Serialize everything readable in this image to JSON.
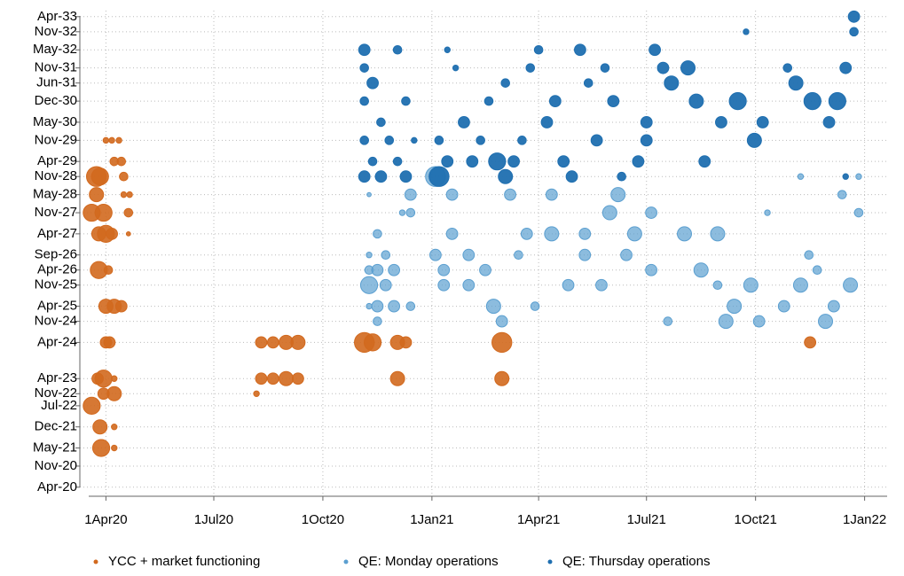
{
  "chart_data": {
    "type": "bubble",
    "xlim": [
      "2020-03-10",
      "2022-01-20"
    ],
    "xticks": [
      {
        "value": "2020-04-01",
        "label": "1Apr20"
      },
      {
        "value": "2020-07-01",
        "label": "1Jul20"
      },
      {
        "value": "2020-10-01",
        "label": "1Oct20"
      },
      {
        "value": "2021-01-01",
        "label": "1Jan21"
      },
      {
        "value": "2021-04-01",
        "label": "1Apr21"
      },
      {
        "value": "2021-07-01",
        "label": "1Jul21"
      },
      {
        "value": "2021-10-01",
        "label": "1Oct21"
      },
      {
        "value": "2022-01-01",
        "label": "1Jan22"
      }
    ],
    "ylim": [
      "2020-01",
      "2033-06"
    ],
    "yticks": [
      {
        "value": "2020-04",
        "label": "Apr-20"
      },
      {
        "value": "2020-11",
        "label": "Nov-20"
      },
      {
        "value": "2021-05",
        "label": "May-21"
      },
      {
        "value": "2021-12",
        "label": "Dec-21"
      },
      {
        "value": "2022-07",
        "label": "Jul-22"
      },
      {
        "value": "2022-11",
        "label": "Nov-22"
      },
      {
        "value": "2023-04",
        "label": "Apr-23"
      },
      {
        "value": "2024-04",
        "label": "Apr-24"
      },
      {
        "value": "2024-11",
        "label": "Nov-24"
      },
      {
        "value": "2025-04",
        "label": "Apr-25"
      },
      {
        "value": "2025-11",
        "label": "Nov-25"
      },
      {
        "value": "2026-04",
        "label": "Apr-26"
      },
      {
        "value": "2026-09",
        "label": "Sep-26"
      },
      {
        "value": "2027-04",
        "label": "Apr-27"
      },
      {
        "value": "2027-11",
        "label": "Nov-27"
      },
      {
        "value": "2028-05",
        "label": "May-28"
      },
      {
        "value": "2028-11",
        "label": "Nov-28"
      },
      {
        "value": "2029-04",
        "label": "Apr-29"
      },
      {
        "value": "2029-11",
        "label": "Nov-29"
      },
      {
        "value": "2030-05",
        "label": "May-30"
      },
      {
        "value": "2030-12",
        "label": "Dec-30"
      },
      {
        "value": "2031-06",
        "label": "Jun-31"
      },
      {
        "value": "2031-11",
        "label": "Nov-31"
      },
      {
        "value": "2032-05",
        "label": "May-32"
      },
      {
        "value": "2032-11",
        "label": "Nov-32"
      },
      {
        "value": "2033-04",
        "label": "Apr-33"
      }
    ],
    "grid": true,
    "legend": "bottom",
    "series": [
      {
        "name": "YCC + market functioning",
        "color": "#d2691e",
        "opacity": 0.9,
        "x": [
          "2020-03-24",
          "2020-03-27",
          "2020-03-24",
          "2020-03-20",
          "2020-03-30",
          "2020-03-26",
          "2020-04-01",
          "2020-04-06",
          "2020-03-26",
          "2020-04-03",
          "2020-04-01",
          "2020-04-08",
          "2020-04-14",
          "2020-04-01",
          "2020-04-04",
          "2020-03-25",
          "2020-03-30",
          "2020-04-08",
          "2020-03-30",
          "2020-04-08",
          "2020-03-20",
          "2020-03-27",
          "2020-04-08",
          "2020-03-28",
          "2020-04-08",
          "2020-04-01",
          "2020-04-06",
          "2020-04-12",
          "2020-04-08",
          "2020-04-14",
          "2020-04-16",
          "2020-04-16",
          "2020-04-21",
          "2020-04-20",
          "2020-04-20",
          "2020-08-10",
          "2020-08-20",
          "2020-08-31",
          "2020-09-10",
          "2020-08-10",
          "2020-08-20",
          "2020-08-31",
          "2020-09-10",
          "2020-08-06",
          "2020-11-05",
          "2020-11-12",
          "2020-12-03",
          "2020-12-10",
          "2020-12-03",
          "2021-03-01",
          "2021-03-01",
          "2021-11-16"
        ],
        "values": [
          "2028-11",
          "2028-11",
          "2028-05",
          "2027-11",
          "2027-11",
          "2027-04",
          "2027-04",
          "2027-04",
          "2026-04",
          "2026-04",
          "2025-04",
          "2025-04",
          "2025-04",
          "2024-04",
          "2024-04",
          "2023-04",
          "2023-04",
          "2023-04",
          "2022-11",
          "2022-11",
          "2022-07",
          "2021-12",
          "2021-12",
          "2021-05",
          "2021-05",
          "2029-11",
          "2029-11",
          "2029-11",
          "2029-04",
          "2029-04",
          "2028-11",
          "2028-05",
          "2028-05",
          "2027-11",
          "2027-04",
          "2024-04",
          "2024-04",
          "2024-04",
          "2024-04",
          "2023-04",
          "2023-04",
          "2023-04",
          "2023-04",
          "2022-11",
          "2024-04",
          "2024-04",
          "2024-04",
          "2024-04",
          "2023-04",
          "2024-04",
          "2023-04",
          "2024-04"
        ],
        "sizes": [
          7,
          6,
          5,
          6,
          6,
          5,
          6,
          4,
          6,
          3,
          5,
          5,
          4,
          4,
          4,
          4,
          6,
          2,
          4,
          5,
          6,
          5,
          2,
          6,
          2,
          2,
          2,
          2,
          3,
          3,
          3,
          2,
          2,
          3,
          1.5,
          4,
          4,
          5,
          5,
          4,
          4,
          5,
          4,
          2,
          7,
          6,
          5,
          4,
          5,
          7,
          5,
          4
        ]
      },
      {
        "name": "QE: Monday operations",
        "color": "#5b9fd0",
        "opacity": 0.7,
        "x": [
          "2020-11-09",
          "2020-11-09",
          "2020-11-09",
          "2020-11-09",
          "2020-11-09",
          "2020-11-16",
          "2020-11-16",
          "2020-11-16",
          "2020-11-16",
          "2020-11-23",
          "2020-11-23",
          "2020-11-30",
          "2020-11-30",
          "2020-12-07",
          "2020-12-14",
          "2020-12-14",
          "2020-12-14",
          "2021-01-04",
          "2021-01-04",
          "2021-01-11",
          "2021-01-11",
          "2021-01-18",
          "2021-01-18",
          "2021-02-01",
          "2021-02-01",
          "2021-02-15",
          "2021-02-22",
          "2021-03-01",
          "2021-03-08",
          "2021-03-15",
          "2021-03-22",
          "2021-03-29",
          "2021-04-12",
          "2021-04-12",
          "2021-04-26",
          "2021-05-10",
          "2021-05-10",
          "2021-05-24",
          "2021-05-31",
          "2021-06-07",
          "2021-06-14",
          "2021-06-21",
          "2021-07-05",
          "2021-07-05",
          "2021-07-19",
          "2021-08-02",
          "2021-08-16",
          "2021-08-30",
          "2021-08-30",
          "2021-09-06",
          "2021-09-13",
          "2021-09-27",
          "2021-10-04",
          "2021-10-25",
          "2021-11-08",
          "2021-11-15",
          "2021-11-22",
          "2021-11-29",
          "2021-12-06",
          "2021-12-13",
          "2021-12-20",
          "2021-12-27",
          "2021-12-27",
          "2021-11-08",
          "2021-10-11"
        ],
        "values": [
          "2025-11",
          "2026-04",
          "2026-09",
          "2025-04",
          "2028-05",
          "2024-11",
          "2025-04",
          "2027-04",
          "2026-04",
          "2025-11",
          "2026-09",
          "2025-04",
          "2026-04",
          "2027-11",
          "2028-05",
          "2027-11",
          "2025-04",
          "2028-11",
          "2026-09",
          "2025-11",
          "2026-04",
          "2028-05",
          "2027-04",
          "2026-09",
          "2025-11",
          "2026-04",
          "2025-04",
          "2024-11",
          "2028-05",
          "2026-09",
          "2027-04",
          "2025-04",
          "2027-04",
          "2028-05",
          "2025-11",
          "2026-09",
          "2027-04",
          "2025-11",
          "2027-11",
          "2028-05",
          "2026-09",
          "2027-04",
          "2027-11",
          "2026-04",
          "2024-11",
          "2027-04",
          "2026-04",
          "2025-11",
          "2027-04",
          "2024-11",
          "2025-04",
          "2025-11",
          "2024-11",
          "2025-04",
          "2025-11",
          "2026-09",
          "2026-04",
          "2024-11",
          "2025-04",
          "2028-05",
          "2025-11",
          "2027-11",
          "2028-11",
          "2028-11",
          "2027-11"
        ],
        "sizes": [
          6,
          3,
          2,
          2,
          1.5,
          3,
          4,
          3,
          4,
          4,
          3,
          4,
          4,
          2,
          4,
          3,
          3,
          7,
          4,
          4,
          4,
          4,
          4,
          4,
          4,
          4,
          5,
          4,
          4,
          3,
          4,
          3,
          5,
          4,
          4,
          4,
          4,
          4,
          5,
          5,
          4,
          5,
          4,
          4,
          3,
          5,
          5,
          3,
          5,
          5,
          5,
          5,
          4,
          4,
          5,
          3,
          3,
          5,
          4,
          3,
          5,
          3,
          2,
          2,
          2
        ]
      },
      {
        "name": "QE: Thursday operations",
        "color": "#1f6fb0",
        "opacity": 0.95,
        "x": [
          "2020-11-05",
          "2020-11-05",
          "2020-11-05",
          "2020-11-05",
          "2020-11-05",
          "2020-11-12",
          "2020-11-12",
          "2020-11-19",
          "2020-11-19",
          "2020-11-26",
          "2020-12-03",
          "2020-12-03",
          "2020-12-10",
          "2020-12-10",
          "2020-12-17",
          "2021-01-07",
          "2021-01-07",
          "2021-01-14",
          "2021-01-14",
          "2021-01-21",
          "2021-01-28",
          "2021-02-04",
          "2021-02-11",
          "2021-02-18",
          "2021-02-25",
          "2021-03-04",
          "2021-03-04",
          "2021-03-11",
          "2021-03-18",
          "2021-03-25",
          "2021-04-01",
          "2021-04-08",
          "2021-04-15",
          "2021-04-22",
          "2021-04-29",
          "2021-05-06",
          "2021-05-13",
          "2021-05-20",
          "2021-05-27",
          "2021-06-03",
          "2021-06-10",
          "2021-06-24",
          "2021-07-01",
          "2021-07-01",
          "2021-07-08",
          "2021-07-15",
          "2021-07-22",
          "2021-08-05",
          "2021-08-12",
          "2021-08-19",
          "2021-09-02",
          "2021-09-16",
          "2021-09-23",
          "2021-09-30",
          "2021-10-07",
          "2021-10-28",
          "2021-11-04",
          "2021-11-18",
          "2021-12-02",
          "2021-12-09",
          "2021-12-16",
          "2021-12-23",
          "2021-12-23",
          "2021-12-16"
        ],
        "values": [
          "2028-11",
          "2032-05",
          "2031-11",
          "2030-12",
          "2029-11",
          "2029-04",
          "2031-06",
          "2030-05",
          "2028-11",
          "2029-11",
          "2032-05",
          "2029-04",
          "2028-11",
          "2030-12",
          "2029-11",
          "2028-11",
          "2029-11",
          "2029-04",
          "2032-05",
          "2031-11",
          "2030-05",
          "2029-04",
          "2029-11",
          "2030-12",
          "2029-04",
          "2028-11",
          "2031-06",
          "2029-04",
          "2029-11",
          "2031-11",
          "2032-05",
          "2030-05",
          "2030-12",
          "2029-04",
          "2028-11",
          "2032-05",
          "2031-06",
          "2029-11",
          "2031-11",
          "2030-12",
          "2028-11",
          "2029-04",
          "2030-05",
          "2029-11",
          "2032-05",
          "2031-11",
          "2031-06",
          "2031-11",
          "2030-12",
          "2029-04",
          "2030-05",
          "2030-12",
          "2032-11",
          "2029-11",
          "2030-05",
          "2031-11",
          "2031-06",
          "2030-12",
          "2030-05",
          "2030-12",
          "2031-11",
          "2032-11",
          "2033-04",
          "2028-11"
        ],
        "sizes": [
          4,
          4,
          3,
          3,
          3,
          3,
          4,
          3,
          4,
          3,
          3,
          3,
          4,
          3,
          2,
          7,
          3,
          4,
          2,
          2,
          4,
          4,
          3,
          3,
          6,
          5,
          3,
          4,
          3,
          3,
          3,
          4,
          4,
          4,
          4,
          4,
          3,
          4,
          3,
          4,
          3,
          4,
          4,
          4,
          4,
          4,
          5,
          5,
          5,
          4,
          4,
          6,
          2,
          5,
          4,
          3,
          5,
          6,
          4,
          6,
          4,
          3,
          4,
          2
        ]
      }
    ]
  }
}
